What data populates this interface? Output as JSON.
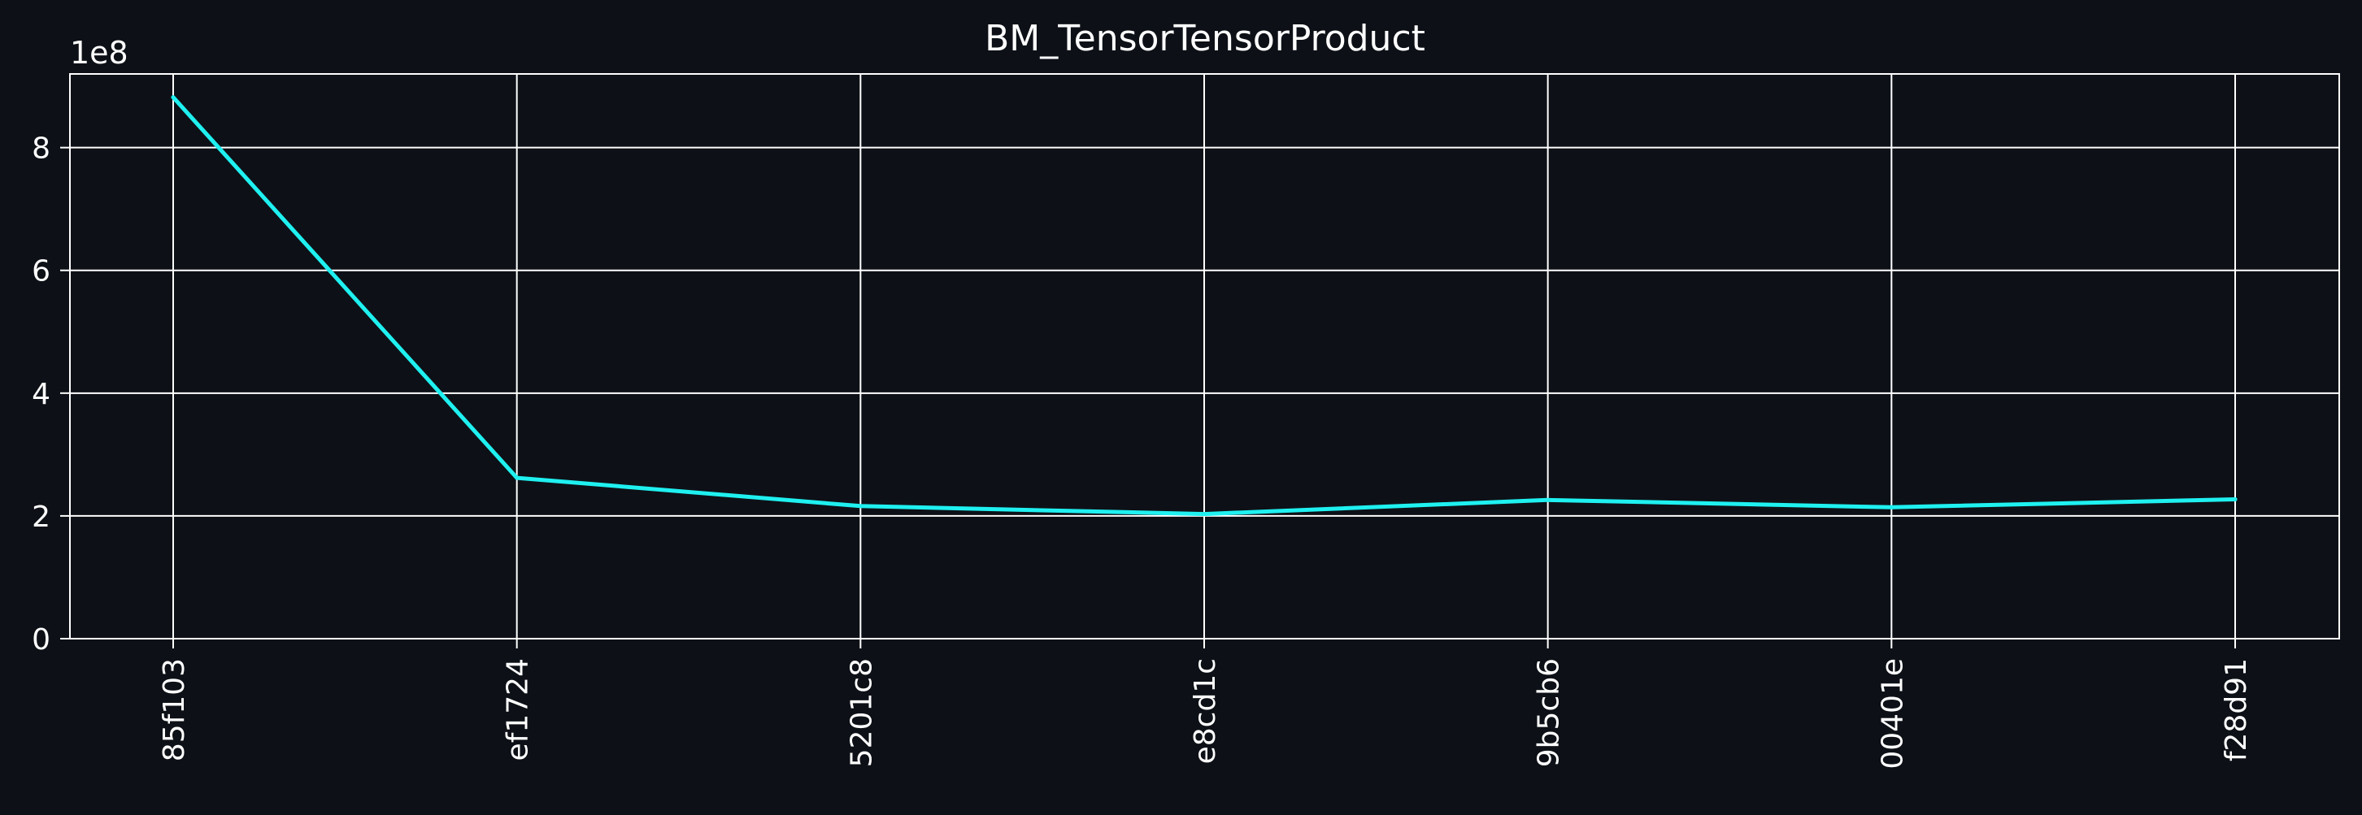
{
  "chart_data": {
    "type": "line",
    "title": "BM_TensorTensorProduct",
    "xlabel": "",
    "ylabel": "",
    "offset_text": "1e8",
    "categories": [
      "85f103",
      "ef1724",
      "5201c8",
      "e8cd1c",
      "9b5cb6",
      "00401e",
      "f28d91"
    ],
    "series": [
      {
        "values": [
          882000000,
          262000000,
          216000000,
          203000000,
          226000000,
          214000000,
          227000000
        ],
        "color": "#1ff0f0"
      }
    ],
    "ylim": [
      0,
      920000000
    ],
    "yticks": [
      0,
      200000000,
      400000000,
      600000000,
      800000000
    ],
    "ytick_labels": [
      "0",
      "2",
      "4",
      "6",
      "8"
    ],
    "grid": true,
    "legend": "none"
  },
  "colors": {
    "background": "#0d1117",
    "grid": "#ffffff",
    "text": "#ffffff",
    "line": "#1ff0f0"
  }
}
